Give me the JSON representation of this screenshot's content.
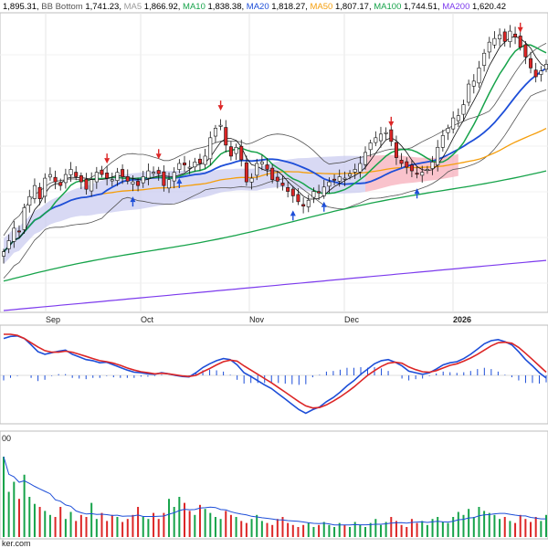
{
  "legend": [
    {
      "text": "1,895.31",
      "color": "#1a1a1a"
    },
    {
      "text": "BB Bottom",
      "color": "#555555"
    },
    {
      "text": "1,741.23",
      "color": "#1a1a1a"
    },
    {
      "text": "MA5",
      "color": "#9a9a9a"
    },
    {
      "text": "1,866.92",
      "color": "#1a1a1a"
    },
    {
      "text": "MA10",
      "color": "#16a34a"
    },
    {
      "text": "1,838.38",
      "color": "#1a1a1a"
    },
    {
      "text": "MA20",
      "color": "#1d4ed8"
    },
    {
      "text": "1,818.27",
      "color": "#1a1a1a"
    },
    {
      "text": "MA50",
      "color": "#f59e0b"
    },
    {
      "text": "1,807.17",
      "color": "#1a1a1a"
    },
    {
      "text": "MA100",
      "color": "#16a34a"
    },
    {
      "text": "1,744.51",
      "color": "#1a1a1a"
    },
    {
      "text": "MA200",
      "color": "#7c3aed"
    },
    {
      "text": "1,620.42",
      "color": "#1a1a1a"
    }
  ],
  "month_labels": [
    "Sep",
    "Oct",
    "Nov",
    "Dec",
    "2026"
  ],
  "volume_tick": "00",
  "footer_text": "ker.com",
  "colors": {
    "up": "#16a34a",
    "down": "#dc2626",
    "ma5": "#111111",
    "ma10": "#16a34a",
    "ma20": "#1d4ed8",
    "ma50": "#f59e0b",
    "ma100": "#16a34a",
    "ma200": "#7c3aed",
    "bb": "#555555",
    "cloud_bull": "#c7c9f0",
    "cloud_bear": "#f8b4bf",
    "macd": "#1d4ed8",
    "signal": "#16a34a",
    "signal_down": "#dc2626",
    "signal_orange": "#f97316",
    "vol_ma": "#1d4ed8",
    "hist": "#1d4ed8"
  },
  "chart_data": {
    "type": "candlestick",
    "title": "",
    "panels": [
      "price",
      "macd",
      "volume"
    ],
    "x_labels": [
      "Sep",
      "Oct",
      "Nov",
      "Dec",
      "2026"
    ],
    "series": [
      {
        "name": "BB Bottom"
      },
      {
        "name": "MA5"
      },
      {
        "name": "MA10"
      },
      {
        "name": "MA20"
      },
      {
        "name": "MA50"
      },
      {
        "name": "MA100"
      },
      {
        "name": "MA200"
      }
    ],
    "last_values": {
      "close": 1895.31,
      "BB Bottom": 1741.23,
      "MA5": 1866.92,
      "MA10": 1838.38,
      "MA20": 1818.27,
      "MA50": 1807.17,
      "MA100": 1744.51,
      "MA200": 1620.42
    },
    "price_ylim": [
      1560,
      1960
    ],
    "closes": [
      1640,
      1655,
      1672,
      1668,
      1700,
      1715,
      1730,
      1712,
      1740,
      1745,
      1735,
      1730,
      1745,
      1752,
      1742,
      1735,
      1725,
      1738,
      1748,
      1745,
      1740,
      1738,
      1748,
      1742,
      1736,
      1735,
      1730,
      1742,
      1750,
      1748,
      1746,
      1730,
      1738,
      1748,
      1760,
      1758,
      1755,
      1762,
      1760,
      1770,
      1795,
      1808,
      1812,
      1785,
      1770,
      1782,
      1765,
      1735,
      1740,
      1760,
      1762,
      1752,
      1738,
      1736,
      1730,
      1722,
      1716,
      1708,
      1702,
      1710,
      1722,
      1720,
      1728,
      1735,
      1738,
      1742,
      1740,
      1746,
      1752,
      1760,
      1775,
      1788,
      1795,
      1800,
      1802,
      1790,
      1768,
      1760,
      1755,
      1750,
      1746,
      1748,
      1752,
      1762,
      1782,
      1798,
      1808,
      1822,
      1825,
      1840,
      1868,
      1872,
      1890,
      1910,
      1925,
      1930,
      1935,
      1926,
      1940,
      1932,
      1918,
      1905,
      1890,
      1878,
      1886,
      1895
    ],
    "macd": [
      0.7,
      0.74,
      0.75,
      0.7,
      0.58,
      0.45,
      0.4,
      0.43,
      0.46,
      0.48,
      0.4,
      0.35,
      0.3,
      0.28,
      0.24,
      0.25,
      0.2,
      0.15,
      0.1,
      0.06,
      0.05,
      0.03,
      0.02,
      0.05,
      0.03,
      0.0,
      -0.02,
      -0.03,
      0.05,
      0.15,
      0.22,
      0.28,
      0.32,
      0.3,
      0.2,
      0.05,
      -0.02,
      -0.1,
      -0.18,
      -0.25,
      -0.35,
      -0.45,
      -0.55,
      -0.65,
      -0.72,
      -0.65,
      -0.6,
      -0.5,
      -0.42,
      -0.32,
      -0.2,
      -0.1,
      0.02,
      0.12,
      0.22,
      0.28,
      0.3,
      0.25,
      0.18,
      0.08,
      0.05,
      0.02,
      0.05,
      0.12,
      0.2,
      0.24,
      0.26,
      0.32,
      0.4,
      0.5,
      0.6,
      0.66,
      0.68,
      0.64,
      0.58,
      0.45,
      0.3,
      0.18,
      0.05,
      -0.05
    ],
    "signal": [
      0.78,
      0.78,
      0.76,
      0.7,
      0.62,
      0.54,
      0.47,
      0.44,
      0.44,
      0.46,
      0.44,
      0.4,
      0.36,
      0.32,
      0.28,
      0.26,
      0.23,
      0.19,
      0.14,
      0.1,
      0.07,
      0.05,
      0.03,
      0.04,
      0.03,
      0.01,
      -0.01,
      -0.02,
      0.0,
      0.07,
      0.13,
      0.2,
      0.26,
      0.29,
      0.27,
      0.18,
      0.1,
      0.02,
      -0.06,
      -0.14,
      -0.23,
      -0.32,
      -0.41,
      -0.5,
      -0.58,
      -0.62,
      -0.61,
      -0.56,
      -0.49,
      -0.41,
      -0.32,
      -0.22,
      -0.11,
      0.0,
      0.09,
      0.17,
      0.23,
      0.25,
      0.23,
      0.16,
      0.11,
      0.07,
      0.06,
      0.09,
      0.14,
      0.19,
      0.22,
      0.27,
      0.33,
      0.4,
      0.48,
      0.56,
      0.62,
      0.63,
      0.61,
      0.53,
      0.42,
      0.3,
      0.18,
      0.06
    ],
    "volume": [
      0.8,
      0.45,
      0.55,
      0.38,
      0.62,
      0.4,
      0.33,
      0.3,
      0.26,
      0.22,
      0.2,
      0.3,
      0.18,
      0.25,
      0.16,
      0.22,
      0.2,
      0.34,
      0.18,
      0.24,
      0.16,
      0.22,
      0.2,
      0.15,
      0.18,
      0.22,
      0.3,
      0.2,
      0.18,
      0.24,
      0.18,
      0.24,
      0.38,
      0.3,
      0.4,
      0.34,
      0.26,
      0.22,
      0.32,
      0.28,
      0.24,
      0.2,
      0.18,
      0.26,
      0.22,
      0.2,
      0.16,
      0.14,
      0.18,
      0.22,
      0.16,
      0.14,
      0.12,
      0.18,
      0.2,
      0.14,
      0.12,
      0.1,
      0.12,
      0.14,
      0.1,
      0.12,
      0.15,
      0.12,
      0.1,
      0.14,
      0.12,
      0.1,
      0.15,
      0.12,
      0.1,
      0.14,
      0.18,
      0.12,
      0.15,
      0.2,
      0.16,
      0.12,
      0.1,
      0.18,
      0.14,
      0.16,
      0.12,
      0.18,
      0.2,
      0.15,
      0.14,
      0.2,
      0.25,
      0.22,
      0.28,
      0.2,
      0.3,
      0.26,
      0.24,
      0.22,
      0.18,
      0.2,
      0.16,
      0.14,
      0.22,
      0.18,
      0.15,
      0.2,
      0.16,
      0.22
    ],
    "signals": [
      {
        "index": 20,
        "panel": "price",
        "direction": "down"
      },
      {
        "index": 25,
        "panel": "price",
        "direction": "up"
      },
      {
        "index": 30,
        "panel": "price",
        "direction": "down"
      },
      {
        "index": 34,
        "panel": "price",
        "direction": "up"
      },
      {
        "index": 42,
        "panel": "price",
        "direction": "down"
      },
      {
        "index": 56,
        "panel": "price",
        "direction": "up"
      },
      {
        "index": 62,
        "panel": "price",
        "direction": "up"
      },
      {
        "index": 75,
        "panel": "price",
        "direction": "down"
      },
      {
        "index": 80,
        "panel": "price",
        "direction": "up"
      },
      {
        "index": 100,
        "panel": "price",
        "direction": "down"
      }
    ]
  }
}
